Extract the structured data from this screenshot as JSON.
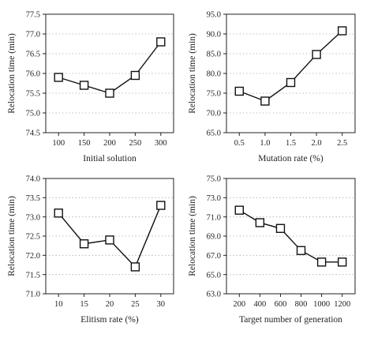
{
  "chart_data": [
    {
      "type": "line",
      "xlabel": "Initial solution",
      "ylabel": "Relocation time (min)",
      "ylim": [
        74.5,
        77.5
      ],
      "yticks": [
        "74.5",
        "75.0",
        "75.5",
        "76.0",
        "76.5",
        "77.0",
        "77.5"
      ],
      "categories": [
        "100",
        "150",
        "200",
        "250",
        "300"
      ],
      "values": [
        75.9,
        75.7,
        75.5,
        75.95,
        76.8
      ],
      "grid": true
    },
    {
      "type": "line",
      "xlabel": "Mutation rate (%)",
      "ylabel": "Relocation time (min)",
      "ylim": [
        65.0,
        95.0
      ],
      "yticks": [
        "65.0",
        "70.0",
        "75.0",
        "80.0",
        "85.0",
        "90.0",
        "95.0"
      ],
      "categories": [
        "0.5",
        "1.0",
        "1.5",
        "2.0",
        "2.5"
      ],
      "values": [
        75.5,
        73.0,
        77.7,
        84.8,
        90.8
      ],
      "grid": true
    },
    {
      "type": "line",
      "xlabel": "Elitism rate (%)",
      "ylabel": "Relocation time (min)",
      "ylim": [
        71.0,
        74.0
      ],
      "yticks": [
        "71.0",
        "71.5",
        "72.0",
        "72.5",
        "73.0",
        "73.5",
        "74.0"
      ],
      "categories": [
        "10",
        "15",
        "20",
        "25",
        "30"
      ],
      "values": [
        73.1,
        72.3,
        72.4,
        71.7,
        73.3
      ],
      "grid": true
    },
    {
      "type": "line",
      "xlabel": "Target number of generation",
      "ylabel": "Relocation time (min)",
      "ylim": [
        63.0,
        75.0
      ],
      "yticks": [
        "63.0",
        "65.0",
        "67.0",
        "69.0",
        "71.0",
        "73.0",
        "75.0"
      ],
      "categories": [
        "200",
        "400",
        "600",
        "800",
        "1000",
        "1200"
      ],
      "values": [
        71.7,
        70.4,
        69.8,
        67.5,
        66.3,
        66.3
      ],
      "grid": true
    }
  ]
}
